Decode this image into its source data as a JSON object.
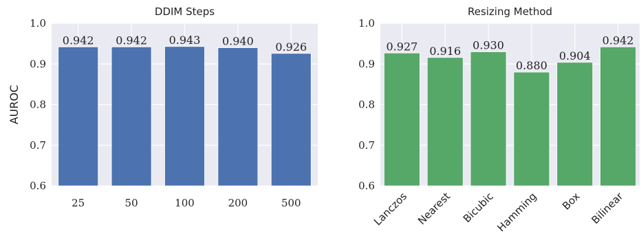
{
  "chart_data": [
    {
      "type": "bar",
      "title": "DDIM Steps",
      "xlabel": "",
      "ylabel": "AUROC",
      "ylim": [
        0.6,
        1.0
      ],
      "yticks": [
        "0.6",
        "0.7",
        "0.8",
        "0.9",
        "1.0"
      ],
      "categories": [
        "25",
        "50",
        "100",
        "200",
        "500"
      ],
      "values": [
        0.942,
        0.942,
        0.943,
        0.94,
        0.926
      ],
      "value_labels": [
        "0.942",
        "0.942",
        "0.943",
        "0.940",
        "0.926"
      ],
      "color": "#4c72b0",
      "grid": true,
      "category_label_rotation": 0
    },
    {
      "type": "bar",
      "title": "Resizing Method",
      "xlabel": "",
      "ylabel": "",
      "ylim": [
        0.6,
        1.0
      ],
      "yticks": [
        "0.6",
        "0.7",
        "0.8",
        "0.9",
        "1.0"
      ],
      "categories": [
        "Lanczos",
        "Nearest",
        "Bicubic",
        "Hamming",
        "Box",
        "Bilinear"
      ],
      "values": [
        0.927,
        0.916,
        0.93,
        0.88,
        0.904,
        0.942
      ],
      "value_labels": [
        "0.927",
        "0.916",
        "0.930",
        "0.880",
        "0.904",
        "0.942"
      ],
      "color": "#55a868",
      "grid": true,
      "category_label_rotation": -45
    }
  ]
}
